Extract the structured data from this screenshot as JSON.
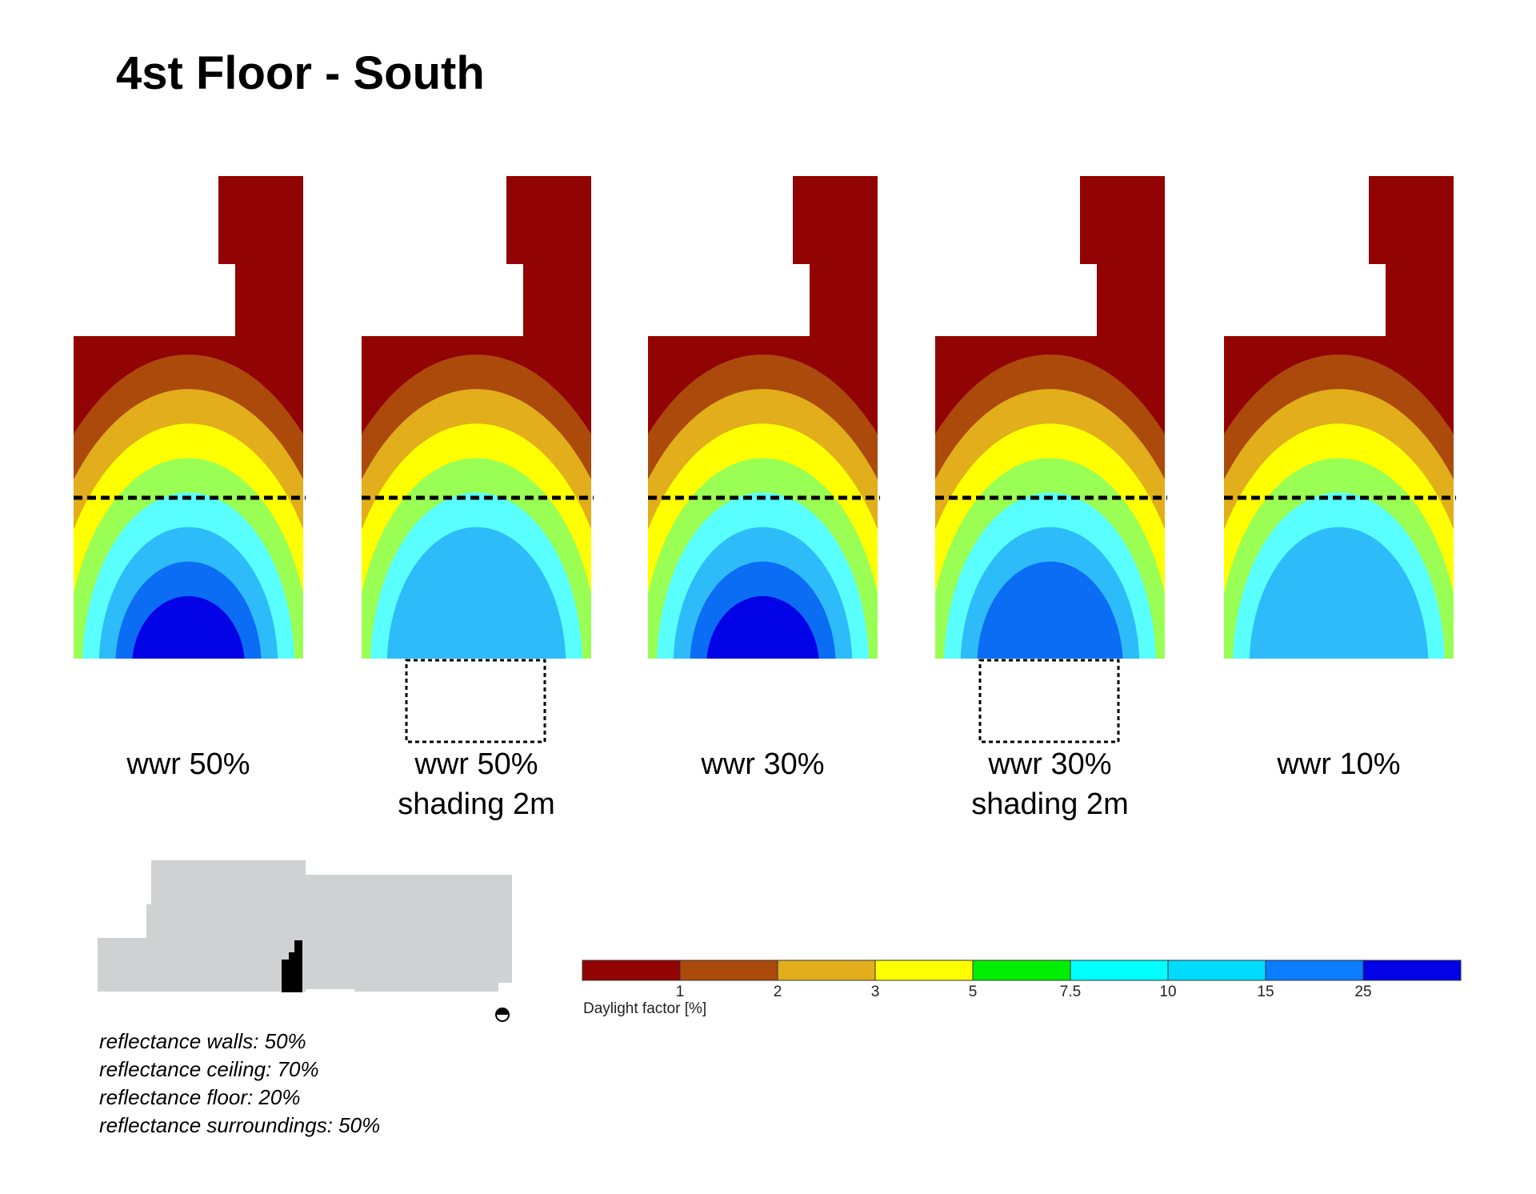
{
  "title": "4st Floor - South",
  "plans": [
    {
      "caption": [
        "wwr 50%"
      ],
      "shading_box": false,
      "band_colors": [
        "#920303",
        "#ac4a0c",
        "#e2ae1b",
        "#ffff00",
        "#99ff55",
        "#59ffff",
        "#2ebbf9",
        "#0b6cf4",
        "#0202e6"
      ]
    },
    {
      "caption": [
        "wwr 50%",
        "shading 2m"
      ],
      "shading_box": true,
      "band_colors": [
        "#920303",
        "#ac4a0c",
        "#e2ae1b",
        "#ffff00",
        "#99ff55",
        "#59ffff",
        "#2ebbf9"
      ]
    },
    {
      "caption": [
        "wwr 30%"
      ],
      "shading_box": false,
      "band_colors": [
        "#920303",
        "#ac4a0c",
        "#e2ae1b",
        "#ffff00",
        "#99ff55",
        "#59ffff",
        "#2ebbf9",
        "#0b6cf4",
        "#0202e6"
      ]
    },
    {
      "caption": [
        "wwr 30%",
        "shading 2m"
      ],
      "shading_box": true,
      "band_colors": [
        "#920303",
        "#ac4a0c",
        "#e2ae1b",
        "#ffff00",
        "#99ff55",
        "#59ffff",
        "#2ebbf9",
        "#0b6cf4"
      ]
    },
    {
      "caption": [
        "wwr 10%"
      ],
      "shading_box": false,
      "band_colors": [
        "#920303",
        "#ac4a0c",
        "#e2ae1b",
        "#ffff00",
        "#99ff55",
        "#59ffff",
        "#2ebbf9"
      ]
    }
  ],
  "notes": [
    "reflectance walls: 50%",
    "reflectance ceiling: 70%",
    "reflectance floor: 20%",
    "reflectance surroundings: 50%"
  ],
  "legend": {
    "title": "Daylight factor [%]",
    "colors": [
      "#920303",
      "#ac4a0c",
      "#e2ae1b",
      "#ffff00",
      "#00ef00",
      "#00ffff",
      "#00dcff",
      "#0a7cff",
      "#0202e6"
    ],
    "ticks": [
      "1",
      "2",
      "3",
      "5",
      "7.5",
      "10",
      "15",
      "25"
    ]
  },
  "colors": {
    "site_plan": "#d0d1d3",
    "building": "#000000",
    "section_line": "#000000"
  }
}
